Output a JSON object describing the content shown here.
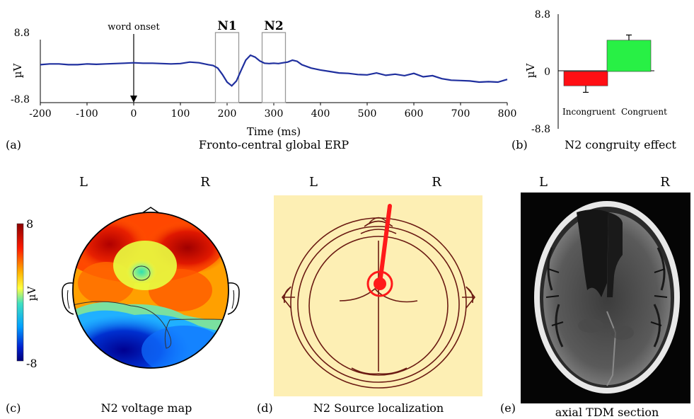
{
  "chart_data": [
    {
      "panel": "(a)",
      "type": "line",
      "title": "Fronto-central global ERP",
      "xlabel": "Time (ms)",
      "ylabel": "µV",
      "xlim": [
        -200,
        800
      ],
      "ylim": [
        -8.8,
        8.8
      ],
      "x_ticks": [
        -200,
        -100,
        0,
        100,
        200,
        300,
        400,
        500,
        600,
        700,
        800
      ],
      "y_ticks": [
        "8.8",
        "-8.8"
      ],
      "annotations": [
        "word onset",
        "N1",
        "N2"
      ],
      "windows": [
        {
          "label": "N1",
          "from": 175,
          "to": 225
        },
        {
          "label": "N2",
          "from": 275,
          "to": 325
        }
      ],
      "onset": 0,
      "series": [
        {
          "color": "#1f2f9e",
          "x": [
            -200,
            -180,
            -160,
            -140,
            -120,
            -100,
            -80,
            -60,
            -40,
            -20,
            0,
            20,
            40,
            60,
            80,
            100,
            120,
            140,
            160,
            170,
            180,
            190,
            200,
            210,
            220,
            230,
            240,
            250,
            260,
            270,
            280,
            290,
            300,
            310,
            320,
            330,
            340,
            350,
            360,
            380,
            400,
            420,
            440,
            460,
            480,
            500,
            520,
            540,
            560,
            580,
            600,
            620,
            640,
            660,
            680,
            700,
            720,
            740,
            760,
            780,
            800
          ],
          "y": [
            0.3,
            0.5,
            0.5,
            0.3,
            0.3,
            0.5,
            0.4,
            0.5,
            0.6,
            0.7,
            0.8,
            0.7,
            0.7,
            0.6,
            0.5,
            0.6,
            1.0,
            0.8,
            0.3,
            0.1,
            -0.6,
            -2.3,
            -4.3,
            -5.3,
            -4.0,
            -1.2,
            1.5,
            2.8,
            2.3,
            1.3,
            0.7,
            0.6,
            0.7,
            0.6,
            0.8,
            1.0,
            1.5,
            1.2,
            0.3,
            -0.6,
            -1.1,
            -1.5,
            -1.9,
            -2.0,
            -2.3,
            -2.4,
            -1.9,
            -2.5,
            -2.2,
            -2.6,
            -2.0,
            -2.9,
            -2.6,
            -3.4,
            -3.8,
            -3.9,
            -4.0,
            -4.3,
            -4.2,
            -4.3,
            -3.6
          ]
        }
      ]
    },
    {
      "panel": "(b)",
      "type": "bar",
      "title": "N2 congruity effect",
      "ylabel": "µV",
      "ylim": [
        -8.8,
        8.8
      ],
      "y_ticks": [
        "8.8",
        "0",
        "-8.8"
      ],
      "categories": [
        "Incongruent",
        "Congruent"
      ],
      "values": [
        -2.2,
        4.8
      ],
      "errors": [
        1.0,
        0.8
      ],
      "colors": [
        "#ff0f14",
        "#28f045"
      ]
    },
    {
      "panel": "(c)",
      "type": "heatmap",
      "title": "N2 voltage map",
      "side_labels": [
        "L",
        "R"
      ],
      "colorbar": {
        "max": "8",
        "min": "-8",
        "label": "µV"
      }
    }
  ],
  "panels": {
    "d": {
      "tag": "(d)",
      "caption": "N2 Source localization",
      "left": "L",
      "right": "R"
    },
    "e": {
      "tag": "(e)",
      "caption": "axial TDM section",
      "left": "L",
      "right": "R"
    }
  }
}
